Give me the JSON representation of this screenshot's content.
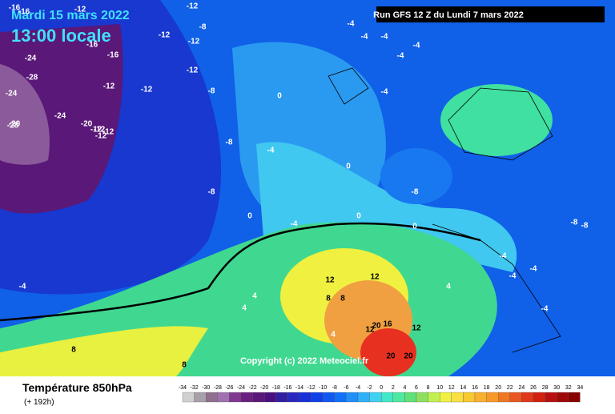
{
  "header": {
    "date": "Mardi 15 mars 2022",
    "time": "13:00 locale",
    "run": "Run GFS 12 Z du Lundi 7 mars 2022"
  },
  "map": {
    "copyright": "Copyright (c) 2022 Meteociel.fr",
    "contour_labels": [
      -16,
      -12,
      -12,
      -12,
      -16,
      -12,
      -12,
      -12,
      -16,
      -8,
      -24,
      -28,
      -24,
      -24,
      -28,
      -20,
      -12,
      -12,
      -8,
      -4,
      -4,
      -4,
      -4,
      -4,
      0,
      -4,
      -8,
      -8,
      0,
      0,
      -4,
      0,
      -4,
      -8,
      -8,
      -4,
      -4,
      4,
      4,
      8,
      8,
      12,
      12,
      12,
      16,
      20,
      20,
      20,
      12,
      4,
      8,
      8,
      4,
      -4,
      -4,
      0,
      -8,
      -12,
      -12,
      -16,
      -20,
      -12,
      -4
    ]
  },
  "footer": {
    "title": "Température 850hPa",
    "subtitle": "(+ 192h)"
  },
  "scale": {
    "labels": [
      -34,
      -32,
      -30,
      -28,
      -26,
      -24,
      -22,
      -20,
      -18,
      -16,
      -14,
      -12,
      -10,
      -8,
      -6,
      -4,
      -2,
      0,
      2,
      4,
      6,
      8,
      10,
      12,
      14,
      16,
      18,
      20,
      22,
      24,
      26,
      28,
      30,
      32,
      34
    ],
    "colors": [
      "#d0d0d0",
      "#a8a0a8",
      "#907090",
      "#a070b0",
      "#803890",
      "#6a2080",
      "#5a1878",
      "#4a1080",
      "#3020a0",
      "#2828c0",
      "#1830d8",
      "#1040e8",
      "#1058f0",
      "#1070f8",
      "#2090f8",
      "#30b0f8",
      "#40d0f0",
      "#40e8c8",
      "#50e8a0",
      "#60e078",
      "#90e060",
      "#c0f050",
      "#f0f040",
      "#f8e040",
      "#f8c830",
      "#f8b030",
      "#f89828",
      "#f07820",
      "#e85820",
      "#e03818",
      "#d02010",
      "#b81010",
      "#a00808",
      "#880000"
    ]
  }
}
